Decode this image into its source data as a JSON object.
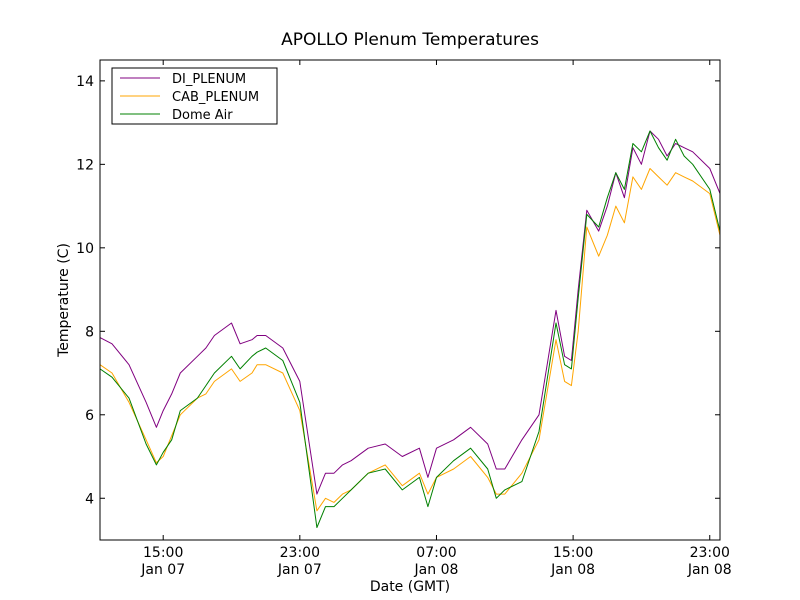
{
  "chart_data": {
    "type": "line",
    "title": "APOLLO Plenum Temperatures",
    "xlabel": "Date (GMT)",
    "ylabel": "Temperature (C)",
    "ylim": [
      3,
      14.5
    ],
    "xlim_hours": [
      11.3,
      47.6
    ],
    "x_unit": "hours since Jan 07 00:00 GMT",
    "yticks": [
      4,
      6,
      8,
      10,
      12,
      14
    ],
    "yticklabels": [
      "4",
      "6",
      "8",
      "10",
      "12",
      "14"
    ],
    "xticks": [
      {
        "x": 15,
        "time": "15:00",
        "date": "Jan 07"
      },
      {
        "x": 23,
        "time": "23:00",
        "date": "Jan 07"
      },
      {
        "x": 31,
        "time": "07:00",
        "date": "Jan 08"
      },
      {
        "x": 39,
        "time": "15:00",
        "date": "Jan 08"
      },
      {
        "x": 47,
        "time": "23:00",
        "date": "Jan 08"
      }
    ],
    "legend_position": "top-left",
    "grid": false,
    "x": [
      11.3,
      12,
      13,
      14,
      14.6,
      15,
      15.5,
      16,
      17,
      17.5,
      18,
      19,
      19.5,
      20.2,
      20.5,
      21,
      22,
      23,
      24,
      24.5,
      25,
      25.5,
      26,
      27,
      28,
      29,
      30,
      30.5,
      31,
      32,
      33,
      34,
      34.5,
      35,
      36,
      37,
      38,
      38.5,
      38.9,
      39.3,
      39.8,
      40.5,
      41,
      41.5,
      42,
      42.5,
      43,
      43.5,
      44,
      44.5,
      45,
      45.5,
      46,
      47,
      47.6
    ],
    "series": [
      {
        "name": "DI_PLENUM",
        "color": "#800080",
        "values": [
          7.85,
          7.7,
          7.2,
          6.3,
          5.7,
          6.1,
          6.5,
          7.0,
          7.4,
          7.6,
          7.9,
          8.2,
          7.7,
          7.8,
          7.9,
          7.9,
          7.6,
          6.8,
          4.1,
          4.6,
          4.6,
          4.8,
          4.9,
          5.2,
          5.3,
          5.0,
          5.2,
          4.5,
          5.2,
          5.4,
          5.7,
          5.3,
          4.7,
          4.7,
          5.4,
          6.0,
          8.5,
          7.4,
          7.3,
          9.0,
          10.9,
          10.4,
          11.0,
          11.8,
          11.2,
          12.4,
          12.0,
          12.8,
          12.6,
          12.2,
          12.5,
          12.4,
          12.3,
          11.9,
          11.3
        ]
      },
      {
        "name": "CAB_PLENUM",
        "color": "#ffa500",
        "values": [
          7.2,
          7.0,
          6.3,
          5.4,
          4.85,
          5.0,
          5.5,
          6.0,
          6.4,
          6.5,
          6.8,
          7.1,
          6.8,
          7.0,
          7.2,
          7.2,
          7.0,
          6.1,
          3.7,
          4.0,
          3.9,
          4.1,
          4.2,
          4.6,
          4.8,
          4.3,
          4.6,
          4.1,
          4.5,
          4.7,
          5.0,
          4.5,
          4.1,
          4.1,
          4.6,
          5.4,
          7.8,
          6.8,
          6.7,
          8.0,
          10.5,
          9.8,
          10.3,
          11.0,
          10.6,
          11.7,
          11.4,
          11.9,
          11.7,
          11.5,
          11.8,
          11.7,
          11.6,
          11.3,
          10.3
        ]
      },
      {
        "name": "Dome Air",
        "color": "#008000",
        "values": [
          7.1,
          6.9,
          6.4,
          5.3,
          4.8,
          5.1,
          5.4,
          6.1,
          6.4,
          6.7,
          7.0,
          7.4,
          7.1,
          7.4,
          7.5,
          7.6,
          7.3,
          6.3,
          3.3,
          3.8,
          3.8,
          4.0,
          4.2,
          4.6,
          4.7,
          4.2,
          4.5,
          3.8,
          4.5,
          4.9,
          5.2,
          4.7,
          4.0,
          4.2,
          4.4,
          5.6,
          8.2,
          7.2,
          7.1,
          8.8,
          10.8,
          10.5,
          11.2,
          11.8,
          11.4,
          12.5,
          12.3,
          12.8,
          12.4,
          12.1,
          12.6,
          12.2,
          12.0,
          11.4,
          10.4
        ]
      }
    ]
  }
}
